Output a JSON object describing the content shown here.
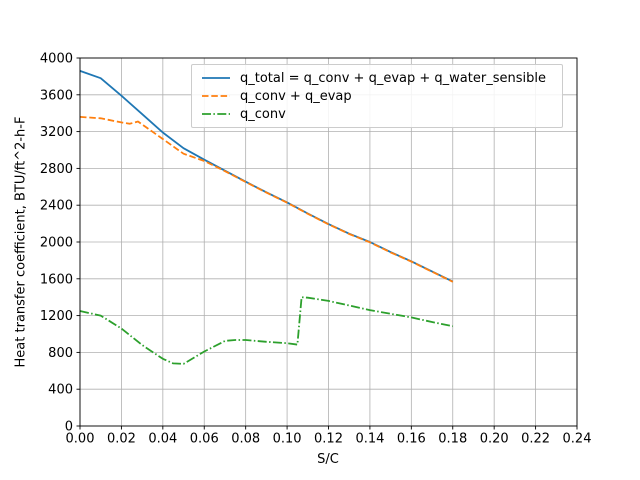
{
  "figure": {
    "background": "#ffffff"
  },
  "chart_data": {
    "type": "line",
    "title": "",
    "xlabel": "S/C",
    "ylabel": "Heat transfer coefficient, BTU/ft^2-h-F",
    "xlim": [
      0,
      0.24
    ],
    "ylim": [
      0,
      4000
    ],
    "grid": true,
    "grid_color": "#b0b0b0",
    "axis_color": "#000000",
    "legend_position": "upper right",
    "x_tick_values": [
      0,
      0.02,
      0.04,
      0.06,
      0.08,
      0.1,
      0.12,
      0.14,
      0.16,
      0.18,
      0.2,
      0.22,
      0.24
    ],
    "x_tick_labels": [
      "0.00",
      "0.02",
      "0.04",
      "0.06",
      "0.08",
      "0.10",
      "0.12",
      "0.14",
      "0.16",
      "0.18",
      "0.20",
      "0.22",
      "0.24"
    ],
    "y_tick_values": [
      0,
      400,
      800,
      1200,
      1600,
      2000,
      2400,
      2800,
      3200,
      3600,
      4000
    ],
    "y_tick_labels": [
      "0",
      "400",
      "800",
      "1200",
      "1600",
      "2000",
      "2400",
      "2800",
      "3200",
      "3600",
      "4000"
    ],
    "series": [
      {
        "name": "q_total = q_conv + q_evap + q_water_sensible",
        "color": "#1f77b4",
        "style": "solid",
        "x": [
          0,
          0.01,
          0.02,
          0.03,
          0.04,
          0.05,
          0.06,
          0.07,
          0.08,
          0.09,
          0.1,
          0.11,
          0.12,
          0.13,
          0.14,
          0.15,
          0.16,
          0.17,
          0.18
        ],
        "y": [
          3860,
          3780,
          3590,
          3390,
          3190,
          3020,
          2895,
          2775,
          2655,
          2540,
          2430,
          2310,
          2195,
          2090,
          2000,
          1890,
          1790,
          1680,
          1570
        ]
      },
      {
        "name": "q_conv + q_evap",
        "color": "#ff7f0e",
        "style": "dashed",
        "x": [
          0,
          0.01,
          0.02,
          0.024,
          0.028,
          0.04,
          0.05,
          0.06,
          0.07,
          0.08,
          0.09,
          0.1,
          0.11,
          0.12,
          0.13,
          0.14,
          0.15,
          0.16,
          0.17,
          0.18
        ],
        "y": [
          3360,
          3345,
          3300,
          3285,
          3310,
          3120,
          2960,
          2880,
          2770,
          2652,
          2537,
          2427,
          2307,
          2192,
          2087,
          1997,
          1887,
          1787,
          1677,
          1567
        ]
      },
      {
        "name": "q_conv",
        "color": "#2ca02c",
        "style": "dashdot",
        "x": [
          0,
          0.01,
          0.02,
          0.03,
          0.04,
          0.045,
          0.05,
          0.06,
          0.07,
          0.075,
          0.08,
          0.09,
          0.1,
          0.105,
          0.107,
          0.11,
          0.12,
          0.13,
          0.14,
          0.15,
          0.16,
          0.17,
          0.18
        ],
        "y": [
          1250,
          1200,
          1060,
          880,
          730,
          680,
          675,
          810,
          925,
          935,
          935,
          915,
          900,
          885,
          1400,
          1395,
          1360,
          1310,
          1260,
          1220,
          1180,
          1130,
          1085
        ]
      }
    ]
  }
}
